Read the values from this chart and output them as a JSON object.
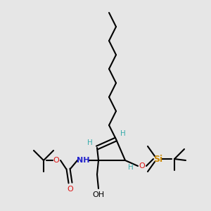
{
  "background_color": "#e6e6e6",
  "fig_size": [
    3.0,
    3.0
  ],
  "dpi": 100,
  "chain_color": "#000000",
  "bond_lw": 1.5,
  "label_configs": {
    "H_alkene_left": {
      "text": "H",
      "color": "#3aacac",
      "fontsize": 7.5
    },
    "H_alkene_right": {
      "text": "H",
      "color": "#3aacac",
      "fontsize": 7.5
    },
    "H_otbs": {
      "text": "H",
      "color": "#3aacac",
      "fontsize": 7.5
    },
    "NH": {
      "text": "NH",
      "color": "#2222cc",
      "fontsize": 8,
      "bold": true
    },
    "O_ester": {
      "text": "O",
      "color": "#dd1111",
      "fontsize": 8
    },
    "O_carbonyl": {
      "text": "O",
      "color": "#dd1111",
      "fontsize": 8
    },
    "O_silyl": {
      "text": "O",
      "color": "#dd1111",
      "fontsize": 8
    },
    "OH": {
      "text": "OH",
      "color": "#000000",
      "fontsize": 8
    },
    "Si": {
      "text": "Si",
      "color": "#cc8800",
      "fontsize": 9,
      "bold": true
    }
  }
}
